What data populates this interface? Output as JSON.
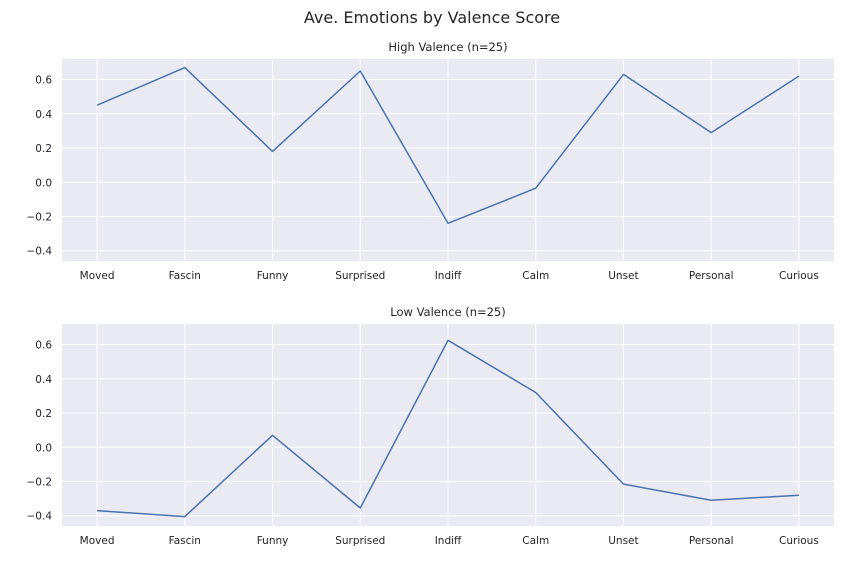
{
  "figure": {
    "title": "Ave. Emotions by Valence Score"
  },
  "chart_data": [
    {
      "type": "line",
      "title": "High Valence (n=25)",
      "categories": [
        "Moved",
        "Fascin",
        "Funny",
        "Surprised",
        "Indiff",
        "Calm",
        "Unset",
        "Personal",
        "Curious"
      ],
      "series": [
        {
          "values": [
            0.45,
            0.67,
            0.18,
            0.65,
            -0.24,
            -0.035,
            0.63,
            0.29,
            0.62
          ]
        }
      ],
      "yticks": [
        -0.4,
        -0.2,
        0.0,
        0.2,
        0.4,
        0.6
      ],
      "ytick_labels": [
        "−0.4",
        "−0.2",
        "0.0",
        "0.2",
        "0.4",
        "0.6"
      ],
      "ylim": [
        -0.46,
        0.72
      ],
      "xlabel": "",
      "ylabel": "",
      "grid": true,
      "color": "#4c72b0"
    },
    {
      "type": "line",
      "title": "Low Valence (n=25)",
      "categories": [
        "Moved",
        "Fascin",
        "Funny",
        "Surprised",
        "Indiff",
        "Calm",
        "Unset",
        "Personal",
        "Curious"
      ],
      "series": [
        {
          "values": [
            -0.37,
            -0.405,
            0.07,
            -0.355,
            0.625,
            0.32,
            -0.215,
            -0.31,
            -0.28
          ]
        }
      ],
      "yticks": [
        -0.4,
        -0.2,
        0.0,
        0.2,
        0.4,
        0.6
      ],
      "ytick_labels": [
        "−0.4",
        "−0.2",
        "0.0",
        "0.2",
        "0.4",
        "0.6"
      ],
      "ylim": [
        -0.46,
        0.72
      ],
      "xlabel": "",
      "ylabel": "",
      "grid": true,
      "color": "#4c72b0"
    }
  ]
}
